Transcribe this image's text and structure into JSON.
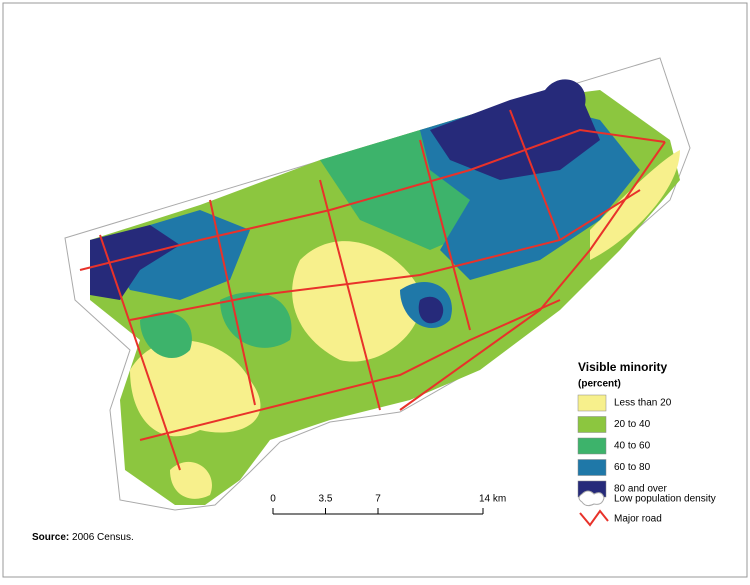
{
  "legend": {
    "title": "Visible minority",
    "subtitle": "(percent)",
    "items": [
      {
        "label": "Less than 20",
        "color": "#f7f08c"
      },
      {
        "label": "20 to 40",
        "color": "#8cc63f"
      },
      {
        "label": "40 to 60",
        "color": "#3db36b"
      },
      {
        "label": "60 to 80",
        "color": "#1f78a8"
      },
      {
        "label": "80 and over",
        "color": "#262a7a"
      }
    ],
    "low_density": "Low population density",
    "road": "Major road"
  },
  "scale_bar": {
    "ticks": [
      {
        "value": 0,
        "label": "0"
      },
      {
        "value": 3.5,
        "label": "3.5"
      },
      {
        "value": 7,
        "label": "7"
      },
      {
        "value": 14,
        "label": "14 km"
      }
    ]
  },
  "source": {
    "label": "Source:",
    "text": "2006 Census."
  }
}
